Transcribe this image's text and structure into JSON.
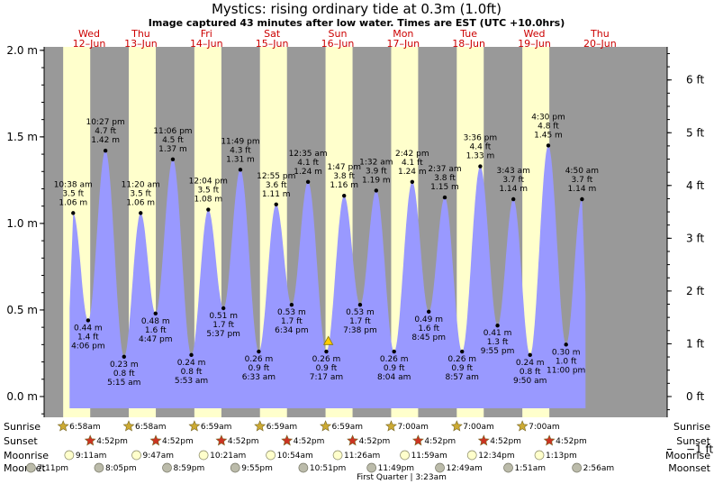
{
  "header": {
    "title": "Mystics: rising  ordinary tide at 0.3m (1.0ft)",
    "subtitle": "Image captured 43 minutes after low water. Times are EST (UTC +10.0hrs)"
  },
  "chart_data": {
    "type": "area",
    "y_unit_left": "m",
    "y_unit_right": "ft",
    "ylim_m": [
      -0.12,
      2.02
    ],
    "left_ticks": [
      "2.0 m",
      "1.5 m",
      "1.0 m",
      "0.5 m",
      "0.0 m"
    ],
    "left_tick_values": [
      2.0,
      1.5,
      1.0,
      0.5,
      0.0
    ],
    "right_ticks": [
      "6 ft",
      "5 ft",
      "4 ft",
      "3 ft",
      "2 ft",
      "1 ft",
      "0 ft",
      "−1 ft"
    ],
    "right_tick_values": [
      6,
      5,
      4,
      3,
      2,
      1,
      0,
      -1
    ],
    "xlim_hours": [
      0,
      228
    ],
    "days": [
      {
        "dow": "Wed",
        "date": "12–Jun"
      },
      {
        "dow": "Thu",
        "date": "13–Jun"
      },
      {
        "dow": "Fri",
        "date": "14–Jun"
      },
      {
        "dow": "Sat",
        "date": "15–Jun"
      },
      {
        "dow": "Sun",
        "date": "16–Jun"
      },
      {
        "dow": "Mon",
        "date": "17–Jun"
      },
      {
        "dow": "Tue",
        "date": "18–Jun"
      },
      {
        "dow": "Wed",
        "date": "19–Jun"
      },
      {
        "dow": "Thu",
        "date": "20–Jun"
      }
    ],
    "daylight": [
      [
        6.97,
        16.87
      ],
      [
        30.97,
        40.87
      ],
      [
        54.98,
        64.87
      ],
      [
        78.98,
        88.87
      ],
      [
        102.98,
        112.87
      ],
      [
        127.0,
        136.87
      ],
      [
        151.0,
        160.87
      ],
      [
        175.0,
        184.87
      ]
    ],
    "tides": [
      {
        "t": 10.63,
        "m": 1.06,
        "ft": "3.5 ft",
        "time": "10:38 am",
        "type": "high"
      },
      {
        "t": 16.1,
        "m": 0.44,
        "ft": "1.4 ft",
        "time": "4:06 pm",
        "type": "low"
      },
      {
        "t": 22.45,
        "m": 1.42,
        "ft": "4.7 ft",
        "time": "10:27 pm",
        "type": "high"
      },
      {
        "t": 29.25,
        "m": 0.23,
        "ft": "0.8 ft",
        "time": "5:15 am",
        "type": "low"
      },
      {
        "t": 35.33,
        "m": 1.06,
        "ft": "3.5 ft",
        "time": "11:20 am",
        "type": "high"
      },
      {
        "t": 40.78,
        "m": 0.48,
        "ft": "1.6 ft",
        "time": "4:47 pm",
        "type": "low"
      },
      {
        "t": 47.1,
        "m": 1.37,
        "ft": "4.5 ft",
        "time": "11:06 pm",
        "type": "high"
      },
      {
        "t": 53.88,
        "m": 0.24,
        "ft": "0.8 ft",
        "time": "5:53 am",
        "type": "low"
      },
      {
        "t": 60.07,
        "m": 1.08,
        "ft": "3.5 ft",
        "time": "12:04 pm",
        "type": "high"
      },
      {
        "t": 65.62,
        "m": 0.51,
        "ft": "1.7 ft",
        "time": "5:37 pm",
        "type": "low"
      },
      {
        "t": 71.82,
        "m": 1.31,
        "ft": "4.3 ft",
        "time": "11:49 pm",
        "type": "high"
      },
      {
        "t": 78.55,
        "m": 0.26,
        "ft": "0.9 ft",
        "time": "6:33 am",
        "type": "low"
      },
      {
        "t": 84.92,
        "m": 1.11,
        "ft": "3.6 ft",
        "time": "12:55 pm",
        "type": "high"
      },
      {
        "t": 90.57,
        "m": 0.53,
        "ft": "1.7 ft",
        "time": "6:34 pm",
        "type": "low"
      },
      {
        "t": 96.58,
        "m": 1.24,
        "ft": "4.1 ft",
        "time": "12:35 am",
        "type": "high"
      },
      {
        "t": 103.28,
        "m": 0.26,
        "ft": "0.9 ft",
        "time": "7:17 am",
        "type": "low"
      },
      {
        "t": 109.78,
        "m": 1.16,
        "ft": "3.8 ft",
        "time": "1:47 pm",
        "type": "high"
      },
      {
        "t": 115.63,
        "m": 0.53,
        "ft": "1.7 ft",
        "time": "7:38 pm",
        "type": "low"
      },
      {
        "t": 121.53,
        "m": 1.19,
        "ft": "3.9 ft",
        "time": "1:32 am",
        "type": "high"
      },
      {
        "t": 128.07,
        "m": 0.26,
        "ft": "0.9 ft",
        "time": "8:04 am",
        "type": "low"
      },
      {
        "t": 134.7,
        "m": 1.24,
        "ft": "4.1 ft",
        "time": "2:42 pm",
        "type": "high"
      },
      {
        "t": 140.75,
        "m": 0.49,
        "ft": "1.6 ft",
        "time": "8:45 pm",
        "type": "low"
      },
      {
        "t": 146.62,
        "m": 1.15,
        "ft": "3.8 ft",
        "time": "2:37 am",
        "type": "high"
      },
      {
        "t": 152.95,
        "m": 0.26,
        "ft": "0.9 ft",
        "time": "8:57 am",
        "type": "low"
      },
      {
        "t": 159.6,
        "m": 1.33,
        "ft": "4.4 ft",
        "time": "3:36 pm",
        "type": "high"
      },
      {
        "t": 165.92,
        "m": 0.41,
        "ft": "1.3 ft",
        "time": "9:55 pm",
        "type": "low"
      },
      {
        "t": 171.72,
        "m": 1.14,
        "ft": "3.7 ft",
        "time": "3:43 am",
        "type": "high"
      },
      {
        "t": 177.83,
        "m": 0.24,
        "ft": "0.8 ft",
        "time": "9:50 am",
        "type": "low"
      },
      {
        "t": 184.5,
        "m": 1.45,
        "ft": "4.8 ft",
        "time": "4:30 pm",
        "type": "high"
      },
      {
        "t": 191.0,
        "m": 0.3,
        "ft": "1.0 ft",
        "time": "11:00 pm",
        "type": "low"
      },
      {
        "t": 196.83,
        "m": 1.14,
        "ft": "3.7 ft",
        "time": "4:50 am",
        "type": "high"
      }
    ],
    "current_marker": {
      "t": 104.0,
      "m": 0.3
    }
  },
  "events": {
    "row_labels": [
      "Sunrise",
      "Sunset",
      "Moonrise",
      "Moonset"
    ],
    "sunrise": [
      {
        "t": 6.97,
        "label": "6:58am"
      },
      {
        "t": 30.97,
        "label": "6:58am"
      },
      {
        "t": 54.98,
        "label": "6:59am"
      },
      {
        "t": 78.98,
        "label": "6:59am"
      },
      {
        "t": 102.98,
        "label": "6:59am"
      },
      {
        "t": 127.0,
        "label": "7:00am"
      },
      {
        "t": 151.0,
        "label": "7:00am"
      },
      {
        "t": 175.0,
        "label": "7:00am"
      }
    ],
    "sunset": [
      {
        "t": 16.87,
        "label": "4:52pm"
      },
      {
        "t": 40.87,
        "label": "4:52pm"
      },
      {
        "t": 64.87,
        "label": "4:52pm"
      },
      {
        "t": 88.87,
        "label": "4:52pm"
      },
      {
        "t": 112.87,
        "label": "4:52pm"
      },
      {
        "t": 136.87,
        "label": "4:52pm"
      },
      {
        "t": 160.87,
        "label": "4:52pm"
      },
      {
        "t": 184.87,
        "label": "4:52pm"
      }
    ],
    "moonrise": [
      {
        "t": 9.18,
        "label": "9:11am"
      },
      {
        "t": 33.78,
        "label": "9:47am"
      },
      {
        "t": 58.35,
        "label": "10:21am"
      },
      {
        "t": 82.9,
        "label": "10:54am"
      },
      {
        "t": 107.43,
        "label": "11:26am"
      },
      {
        "t": 131.98,
        "label": "11:59am"
      },
      {
        "t": 156.57,
        "label": "12:34pm"
      },
      {
        "t": 181.22,
        "label": "1:13pm"
      }
    ],
    "moonset": [
      {
        "t": -4.82,
        "label": "7:11pm"
      },
      {
        "t": 20.08,
        "label": "8:05pm"
      },
      {
        "t": 44.98,
        "label": "8:59pm"
      },
      {
        "t": 69.92,
        "label": "9:55pm"
      },
      {
        "t": 94.85,
        "label": "10:51pm"
      },
      {
        "t": 119.82,
        "label": "11:49pm"
      },
      {
        "t": 144.82,
        "label": "12:49am"
      },
      {
        "t": 169.85,
        "label": "1:51am"
      },
      {
        "t": 194.93,
        "label": "2:56am"
      }
    ],
    "moon_phase": "First Quarter | 3:23am"
  },
  "colors": {
    "night": "#999999",
    "day": "#ffffcc",
    "water": "#9999ff",
    "day_label": "#cc0000",
    "sun_icon": "#ccaa33",
    "sunset_icon": "#cc3322",
    "moon_icon": "#ffffcc",
    "moonset_icon": "#bbbbaa"
  }
}
